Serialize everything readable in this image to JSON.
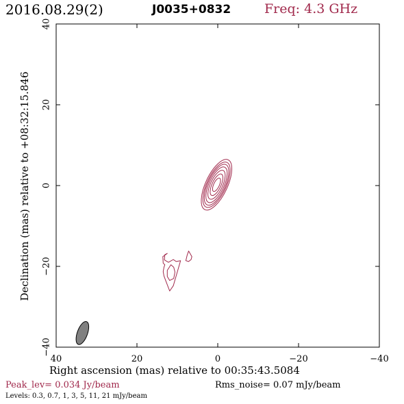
{
  "header": {
    "date": "2016.08.29(2)",
    "source": "J0035+0832",
    "frequency": "Freq: 4.3 GHz"
  },
  "footer": {
    "peak": "Peak_lev=  0.034 Jy/beam",
    "rms": "Rms_noise= 0.07 mJy/beam",
    "levels": "Levels: 0.3, 0.7,   1,   3,   5,  11,  21 mJy/beam"
  },
  "colors": {
    "contour": "#a0284b",
    "beam_fill": "#808080",
    "axis": "#000000"
  },
  "chart_data": {
    "type": "contour",
    "xlabel": "Right ascension (mas) relative to 00:35:43.5084",
    "ylabel": "Declination (mas) relative to +08:32:15.846",
    "xlim": [
      40,
      -40
    ],
    "ylim": [
      -40,
      40
    ],
    "x_ticks": [
      40,
      20,
      0,
      -20,
      -40
    ],
    "y_ticks": [
      40,
      20,
      0,
      -20,
      -40
    ],
    "x_tick_labels": [
      "40",
      "20",
      "0",
      "−20",
      "−40"
    ],
    "y_tick_labels": [
      "40",
      "20",
      "0",
      "−20",
      "−40"
    ],
    "levels_mJy_per_beam": [
      0.3,
      0.7,
      1,
      3,
      5,
      11,
      21
    ],
    "peak_Jy_per_beam": 0.034,
    "rms_mJy_per_beam": 0.07,
    "core_component": {
      "center_mas": [
        0.3,
        0.2
      ],
      "pa_deg": -25,
      "contours": [
        {
          "semi_major_mas": 6.8,
          "semi_minor_mas": 2.7
        },
        {
          "semi_major_mas": 6.1,
          "semi_minor_mas": 2.4
        },
        {
          "semi_major_mas": 5.5,
          "semi_minor_mas": 2.15
        },
        {
          "semi_major_mas": 4.8,
          "semi_minor_mas": 1.85
        },
        {
          "semi_major_mas": 3.9,
          "semi_minor_mas": 1.5
        },
        {
          "semi_major_mas": 2.9,
          "semi_minor_mas": 1.1
        },
        {
          "semi_major_mas": 1.8,
          "semi_minor_mas": 0.7
        }
      ]
    },
    "jet_outer_contour_mas": [
      [
        12.5,
        -16.8
      ],
      [
        13.1,
        -17.1
      ],
      [
        13.2,
        -18.4
      ],
      [
        12.2,
        -19.0
      ],
      [
        11.0,
        -18.3
      ],
      [
        10.3,
        -18.8
      ],
      [
        9.2,
        -18.6
      ],
      [
        9.9,
        -21.0
      ],
      [
        11.0,
        -24.8
      ],
      [
        11.9,
        -26.1
      ],
      [
        12.9,
        -23.5
      ],
      [
        13.3,
        -22.4
      ],
      [
        13.5,
        -21.3
      ],
      [
        13.3,
        -20.2
      ],
      [
        13.1,
        -19.6
      ],
      [
        13.5,
        -19.2
      ],
      [
        13.6,
        -17.6
      ],
      [
        12.5,
        -16.8
      ]
    ],
    "jet_inner_contour_mas": [
      [
        11.6,
        -19.6
      ],
      [
        12.5,
        -21.0
      ],
      [
        12.5,
        -22.5
      ],
      [
        11.9,
        -23.5
      ],
      [
        10.9,
        -23.0
      ],
      [
        10.6,
        -21.4
      ],
      [
        10.9,
        -20.2
      ],
      [
        11.6,
        -19.6
      ]
    ],
    "jet_blob_contour_mas": [
      [
        7.2,
        -16.2
      ],
      [
        7.6,
        -17.3
      ],
      [
        7.9,
        -18.6
      ],
      [
        7.2,
        -18.8
      ],
      [
        6.6,
        -18.3
      ],
      [
        6.4,
        -17.6
      ],
      [
        7.2,
        -16.2
      ]
    ],
    "beam": {
      "center_mas": [
        33.5,
        -36.5
      ],
      "semi_major_mas": 3.0,
      "semi_minor_mas": 0.9,
      "pa_deg": -20
    }
  }
}
